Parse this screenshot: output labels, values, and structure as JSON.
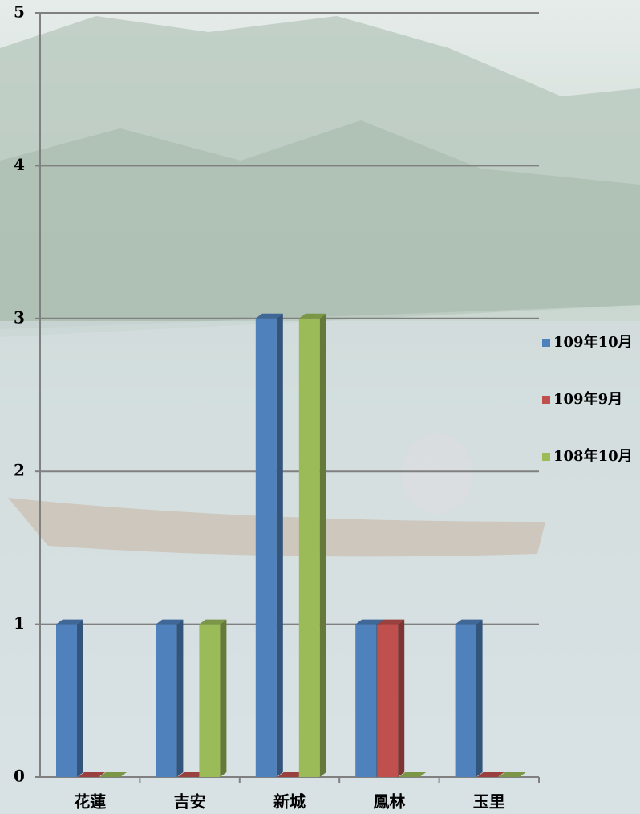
{
  "chart_data": {
    "type": "bar",
    "categories": [
      "花蓮",
      "吉安",
      "新城",
      "鳳林",
      "玉里"
    ],
    "series": [
      {
        "name": "109年10月",
        "color": "#4f81bd",
        "values": [
          1,
          1,
          3,
          1,
          1
        ]
      },
      {
        "name": "109年9月",
        "color": "#c0504d",
        "values": [
          0,
          0,
          0,
          1,
          0
        ]
      },
      {
        "name": "108年10月",
        "color": "#9bbb59",
        "values": [
          0,
          1,
          3,
          0,
          0
        ]
      }
    ],
    "ylim": [
      0,
      5
    ],
    "yticks": [
      0,
      1,
      2,
      3,
      4,
      5
    ],
    "grid": true,
    "legend": "right"
  }
}
